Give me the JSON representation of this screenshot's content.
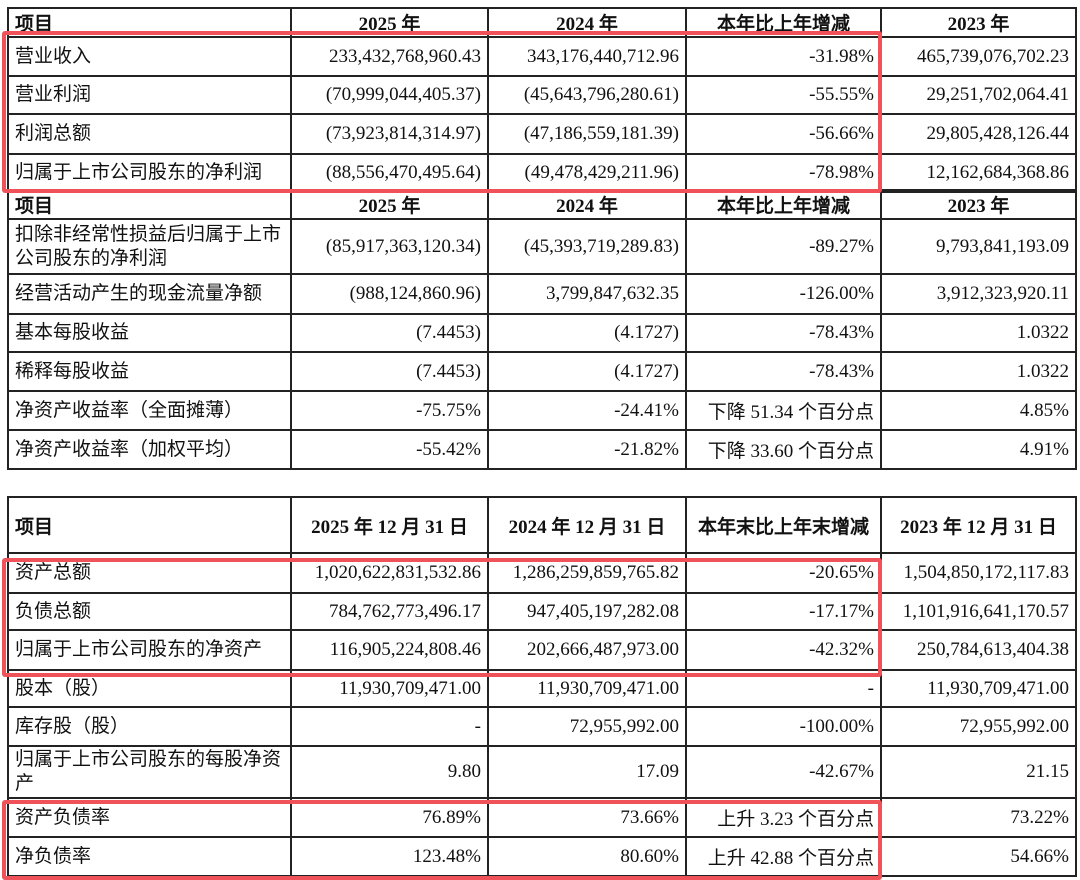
{
  "table1": {
    "headers": [
      "项目",
      "2025 年",
      "2024 年",
      "本年比上年增减",
      "2023 年"
    ],
    "rows": [
      [
        "营业收入",
        "233,432,768,960.43",
        "343,176,440,712.96",
        "-31.98%",
        "465,739,076,702.23"
      ],
      [
        "营业利润",
        "(70,999,044,405.37)",
        "(45,643,796,280.61)",
        "-55.55%",
        "29,251,702,064.41"
      ],
      [
        "利润总额",
        "(73,923,814,314.97)",
        "(47,186,559,181.39)",
        "-56.66%",
        "29,805,428,126.44"
      ],
      [
        "归属于上市公司股东的净利润",
        "(88,556,470,495.64)",
        "(49,478,429,211.96)",
        "-78.98%",
        "12,162,684,368.86"
      ]
    ]
  },
  "table2": {
    "headers": [
      "项目",
      "2025 年",
      "2024 年",
      "本年比上年增减",
      "2023 年"
    ],
    "rows": [
      [
        "扣除非经常性损益后归属于上市公司股东的净利润",
        "(85,917,363,120.34)",
        "(45,393,719,289.83)",
        "-89.27%",
        "9,793,841,193.09"
      ],
      [
        "经营活动产生的现金流量净额",
        "(988,124,860.96)",
        "3,799,847,632.35",
        "-126.00%",
        "3,912,323,920.11"
      ],
      [
        "基本每股收益",
        "(7.4453)",
        "(4.1727)",
        "-78.43%",
        "1.0322"
      ],
      [
        "稀释每股收益",
        "(7.4453)",
        "(4.1727)",
        "-78.43%",
        "1.0322"
      ],
      [
        "净资产收益率（全面摊薄）",
        "-75.75%",
        "-24.41%",
        "下降 51.34 个百分点",
        "4.85%"
      ],
      [
        "净资产收益率（加权平均）",
        "-55.42%",
        "-21.82%",
        "下降 33.60 个百分点",
        "4.91%"
      ]
    ]
  },
  "table3": {
    "headers": [
      "项目",
      "2025 年 12 月 31 日",
      "2024 年 12 月 31 日",
      "本年末比上年末增减",
      "2023 年 12 月 31 日"
    ],
    "rows": [
      [
        "资产总额",
        "1,020,622,831,532.86",
        "1,286,259,859,765.82",
        "-20.65%",
        "1,504,850,172,117.83"
      ],
      [
        "负债总额",
        "784,762,773,496.17",
        "947,405,197,282.08",
        "-17.17%",
        "1,101,916,641,170.57"
      ],
      [
        "归属于上市公司股东的净资产",
        "116,905,224,808.46",
        "202,666,487,973.00",
        "-42.32%",
        "250,784,613,404.38"
      ],
      [
        "股本（股）",
        "11,930,709,471.00",
        "11,930,709,471.00",
        "-",
        "11,930,709,471.00"
      ],
      [
        "库存股（股）",
        "-",
        "72,955,992.00",
        "-100.00%",
        "72,955,992.00"
      ],
      [
        "归属于上市公司股东的每股净资产",
        "9.80",
        "17.09",
        "-42.67%",
        "21.15"
      ],
      [
        "资产负债率",
        "76.89%",
        "73.66%",
        "上升 3.23 个百分点",
        "73.22%"
      ],
      [
        "净负债率",
        "123.48%",
        "80.60%",
        "上升 42.88 个百分点",
        "54.66%"
      ]
    ]
  },
  "highlight_color": "#f0525a"
}
